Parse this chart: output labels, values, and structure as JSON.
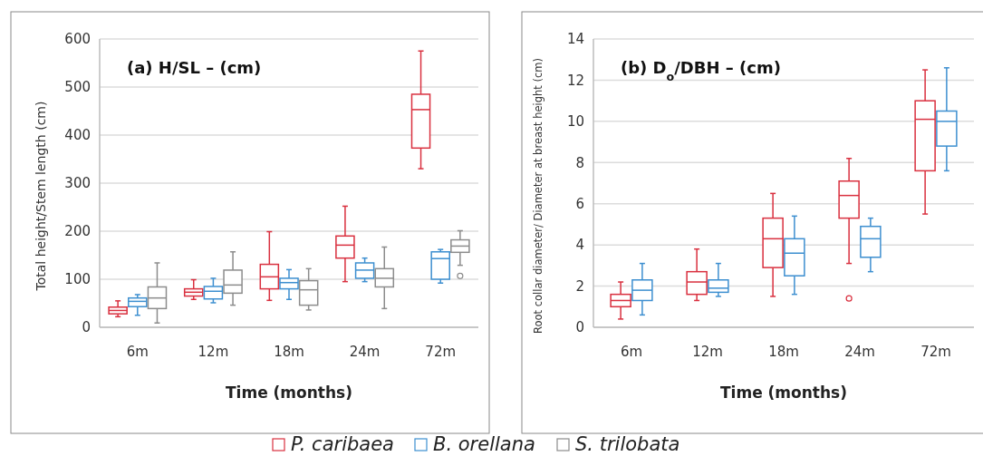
{
  "chart_data": [
    {
      "type": "box",
      "title": "(a) H/SL – (cm)",
      "xlabel": "Time (months)",
      "ylabel": "Total height/Stem length (cm)",
      "categories": [
        "6m",
        "12m",
        "18m",
        "24m",
        "72m"
      ],
      "ylim": [
        0,
        600
      ],
      "yticks": [
        0,
        100,
        200,
        300,
        400,
        500,
        600
      ],
      "grid": "y",
      "legend": "bottom",
      "series": [
        {
          "name": "P. caribaea",
          "color": "#d9303f",
          "boxes": [
            {
              "low": 22,
              "q1": 28,
              "median": 35,
              "q3": 42,
              "high": 55
            },
            {
              "low": 58,
              "q1": 65,
              "median": 73,
              "q3": 80,
              "high": 99
            },
            {
              "low": 56,
              "q1": 80,
              "median": 105,
              "q3": 131,
              "high": 199
            },
            {
              "low": 95,
              "q1": 144,
              "median": 171,
              "q3": 190,
              "high": 252
            },
            {
              "low": 330,
              "q1": 373,
              "median": 453,
              "q3": 485,
              "high": 575
            }
          ]
        },
        {
          "name": "B. orellana",
          "color": "#3d8fd0",
          "boxes": [
            {
              "low": 25,
              "q1": 43,
              "median": 54,
              "q3": 61,
              "high": 68
            },
            {
              "low": 51,
              "q1": 59,
              "median": 75,
              "q3": 85,
              "high": 102
            },
            {
              "low": 58,
              "q1": 80,
              "median": 93,
              "q3": 102,
              "high": 120
            },
            {
              "low": 95,
              "q1": 102,
              "median": 119,
              "q3": 134,
              "high": 144
            },
            {
              "low": 92,
              "q1": 100,
              "median": 143,
              "q3": 157,
              "high": 162
            }
          ]
        },
        {
          "name": "S. trilobata",
          "color": "#8c8c8c",
          "boxes": [
            {
              "low": 9,
              "q1": 39,
              "median": 61,
              "q3": 84,
              "high": 134
            },
            {
              "low": 46,
              "q1": 71,
              "median": 88,
              "q3": 119,
              "high": 157
            },
            {
              "low": 36,
              "q1": 46,
              "median": 78,
              "q3": 97,
              "high": 122
            },
            {
              "low": 39,
              "q1": 84,
              "median": 102,
              "q3": 122,
              "high": 167
            },
            {
              "low": 129,
              "q1": 156,
              "median": 169,
              "q3": 182,
              "high": 201,
              "outliers": [
                107
              ]
            }
          ]
        }
      ]
    },
    {
      "type": "box",
      "title": "(b) D$_{o}$/DBH – (cm)",
      "xlabel": "Time (months)",
      "ylabel": "Root collar diameter/ Diameter at breast height (cm)",
      "categories": [
        "6m",
        "12m",
        "18m",
        "24m",
        "72m"
      ],
      "ylim": [
        0,
        14
      ],
      "yticks": [
        0,
        2,
        4,
        6,
        8,
        10,
        12,
        14
      ],
      "grid": "y",
      "legend": "bottom",
      "series": [
        {
          "name": "P. caribaea",
          "color": "#d9303f",
          "boxes": [
            {
              "low": 0.4,
              "q1": 1.0,
              "median": 1.3,
              "q3": 1.6,
              "high": 2.2
            },
            {
              "low": 1.3,
              "q1": 1.6,
              "median": 2.2,
              "q3": 2.7,
              "high": 3.8
            },
            {
              "low": 1.5,
              "q1": 2.9,
              "median": 4.3,
              "q3": 5.3,
              "high": 6.5
            },
            {
              "low": 3.1,
              "q1": 5.3,
              "median": 6.4,
              "q3": 7.1,
              "high": 8.2,
              "outliers": [
                1.4
              ]
            },
            {
              "low": 5.5,
              "q1": 7.6,
              "median": 10.1,
              "q3": 11.0,
              "high": 12.5
            }
          ]
        },
        {
          "name": "B. orellana",
          "color": "#3d8fd0",
          "boxes": [
            {
              "low": 0.6,
              "q1": 1.3,
              "median": 1.8,
              "q3": 2.3,
              "high": 3.1
            },
            {
              "low": 1.5,
              "q1": 1.7,
              "median": 1.9,
              "q3": 2.3,
              "high": 3.1
            },
            {
              "low": 1.6,
              "q1": 2.5,
              "median": 3.6,
              "q3": 4.3,
              "high": 5.4
            },
            {
              "low": 2.7,
              "q1": 3.4,
              "median": 4.3,
              "q3": 4.9,
              "high": 5.3
            },
            {
              "low": 7.6,
              "q1": 8.8,
              "median": 10.0,
              "q3": 10.5,
              "high": 12.6
            }
          ]
        }
      ]
    }
  ]
}
